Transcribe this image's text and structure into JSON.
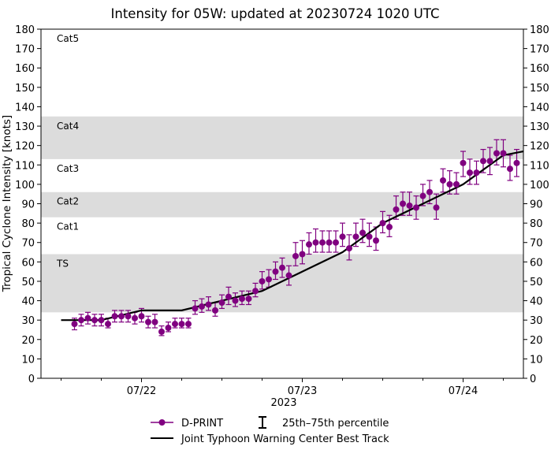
{
  "chart_data": {
    "type": "scatter",
    "title": "Intensity for 05W: updated at 20230724 1020 UTC",
    "ylabel": "Tropical Cyclone Intensity [knots]",
    "xlabel": "2023",
    "ylim": [
      0,
      180
    ],
    "yticks": [
      0,
      10,
      20,
      30,
      40,
      50,
      60,
      70,
      80,
      90,
      100,
      110,
      120,
      130,
      140,
      150,
      160,
      170,
      180
    ],
    "xlim_hours": [
      -15,
      57
    ],
    "xticks": [
      {
        "hour": 0,
        "label": "07/22"
      },
      {
        "hour": 24,
        "label": "07/23"
      },
      {
        "hour": 48,
        "label": "07/24"
      }
    ],
    "category_bands": [
      {
        "label": "TS",
        "low": 34,
        "high": 64,
        "shaded": true
      },
      {
        "label": "Cat1",
        "low": 64,
        "high": 83,
        "shaded": false
      },
      {
        "label": "Cat2",
        "low": 83,
        "high": 96,
        "shaded": true
      },
      {
        "label": "Cat3",
        "low": 96,
        "high": 113,
        "shaded": false
      },
      {
        "label": "Cat4",
        "low": 113,
        "high": 135,
        "shaded": true
      },
      {
        "label": "Cat5",
        "low": 135,
        "high": 180,
        "shaded": false
      }
    ],
    "legend": {
      "dprint": "D-PRINT",
      "percentile": "25th–75th percentile",
      "besttrack": "Joint Typhoon Warning Center Best Track"
    },
    "colors": {
      "dprint": "#800080",
      "besttrack": "#000000",
      "band": "#dcdcdc"
    },
    "best_track": {
      "hours": [
        -12,
        -6,
        0,
        6,
        12,
        18,
        24,
        30,
        36,
        42,
        48,
        54,
        57
      ],
      "values": [
        30,
        30,
        35,
        35,
        40,
        45,
        55,
        65,
        80,
        90,
        100,
        115,
        117
      ]
    },
    "dprint": {
      "hours": [
        -10,
        -9,
        -8,
        -7,
        -6,
        -5,
        -4,
        -3,
        -2,
        -1,
        0,
        1,
        2,
        3,
        4,
        5,
        6,
        7,
        8,
        9,
        10,
        11,
        12,
        13,
        14,
        15,
        16,
        17,
        18,
        19,
        20,
        21,
        22,
        23,
        24,
        25,
        26,
        27,
        28,
        29,
        30,
        31,
        32,
        33,
        34,
        35,
        36,
        37,
        38,
        39,
        40,
        41,
        42,
        43,
        44,
        45,
        46,
        47,
        48,
        49,
        50,
        51,
        52,
        53,
        54,
        55,
        56
      ],
      "values": [
        28,
        30,
        31,
        30,
        30,
        28,
        32,
        32,
        32,
        31,
        32,
        29,
        29,
        24,
        26,
        28,
        28,
        28,
        36,
        37,
        38,
        35,
        39,
        42,
        40,
        41,
        41,
        45,
        50,
        51,
        55,
        57,
        53,
        63,
        64,
        69,
        70,
        70,
        70,
        70,
        73,
        67,
        73,
        75,
        73,
        71,
        80,
        78,
        87,
        90,
        89,
        88,
        94,
        96,
        88,
        102,
        100,
        100,
        111,
        106,
        106,
        112,
        112,
        116,
        116,
        108,
        111
      ],
      "p25": [
        25,
        27,
        28,
        27,
        27,
        26,
        29,
        29,
        29,
        28,
        29,
        26,
        26,
        22,
        24,
        26,
        26,
        26,
        33,
        34,
        35,
        32,
        36,
        38,
        37,
        38,
        38,
        42,
        46,
        47,
        51,
        52,
        48,
        58,
        59,
        64,
        65,
        65,
        65,
        65,
        68,
        61,
        68,
        70,
        68,
        66,
        75,
        73,
        82,
        84,
        84,
        82,
        89,
        90,
        82,
        96,
        95,
        95,
        104,
        100,
        100,
        106,
        105,
        110,
        109,
        102,
        104
      ],
      "p75": [
        31,
        33,
        34,
        33,
        33,
        31,
        35,
        35,
        35,
        34,
        36,
        32,
        33,
        27,
        29,
        31,
        31,
        31,
        40,
        41,
        42,
        39,
        43,
        47,
        44,
        45,
        45,
        49,
        55,
        56,
        60,
        62,
        58,
        70,
        71,
        75,
        77,
        76,
        76,
        76,
        80,
        74,
        80,
        82,
        80,
        78,
        86,
        84,
        94,
        96,
        96,
        94,
        100,
        102,
        95,
        108,
        107,
        106,
        117,
        113,
        112,
        118,
        119,
        123,
        123,
        115,
        118
      ]
    }
  }
}
